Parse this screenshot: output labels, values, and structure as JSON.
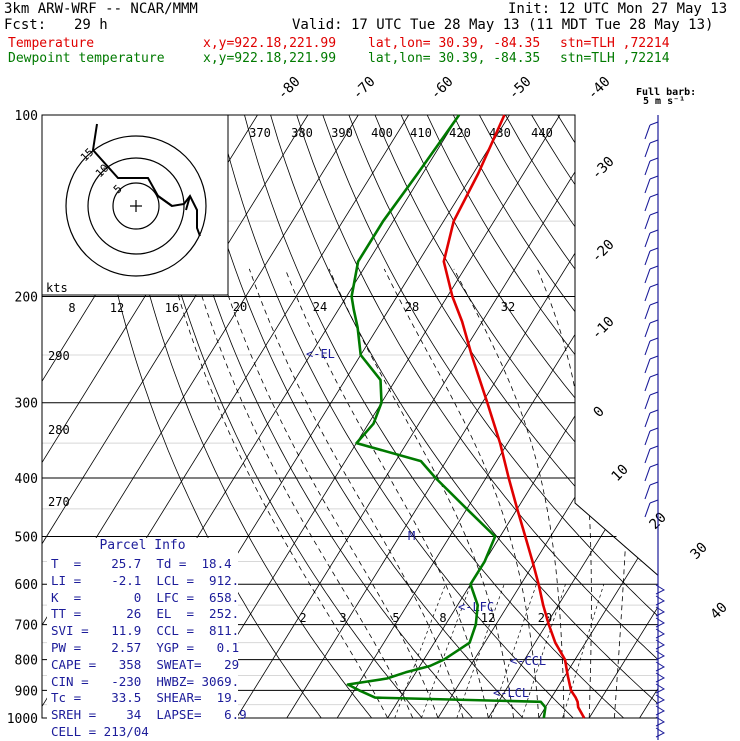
{
  "header": {
    "model": "3km ARW-WRF -- NCAR/MMM",
    "init": "Init: 12 UTC Mon 27 May 13",
    "fcst_label": "Fcst:",
    "fcst_value": "29 h",
    "valid": "Valid: 17 UTC Tue 28 May 13 (11 MDT Tue 28 May 13)",
    "lines": [
      {
        "label": "Temperature",
        "xy": "x,y=922.18,221.99",
        "latlon": "lat,lon= 30.39, -84.35",
        "stn": "stn=TLH ,72214",
        "color": "#e00000"
      },
      {
        "label": "Dewpoint temperature",
        "xy": "x,y=922.18,221.99",
        "latlon": "lat,lon= 30.39, -84.35",
        "stn": "stn=TLH ,72214",
        "color": "#007a00"
      }
    ]
  },
  "legend": {
    "full_barb": "Full barb:",
    "full_barb_value": "5 m s⁻¹"
  },
  "parcel_info": {
    "title": "Parcel Info",
    "rows": [
      "T  =    25.7  Td =  18.4",
      "LI =    -2.1  LCL =  912.",
      "K  =       0  LFC =  658.",
      "TT =      26  EL  =  252.",
      "SVI =   11.9  CCL =  811.",
      "PW =    2.57  YGP =   0.1",
      "CAPE =   358  SWEAT=   29",
      "CIN =   -230  HWBZ= 3069.",
      "Tc =    33.5  SHEAR=  19.",
      "SREH =    34  LAPSE=   6.9",
      "CELL = 213/04"
    ]
  },
  "chart_data": {
    "type": "skew-t",
    "pressure_levels": [
      100,
      200,
      300,
      400,
      500,
      600,
      700,
      800,
      900,
      1000
    ],
    "skewed_temperature_labels": [
      -80,
      -70,
      -60,
      -50,
      -40,
      -30,
      -20,
      -10,
      0,
      10,
      20,
      30,
      40
    ],
    "theta_labels": [
      370,
      380,
      390,
      400,
      410,
      420,
      430,
      440
    ],
    "theta_low_labels": [
      290,
      280,
      270
    ],
    "mixing_ratio_top_labels": [
      20,
      24,
      28,
      32
    ],
    "mixing_ratio_bottom_labels": [
      2,
      3,
      5,
      8,
      12,
      20
    ],
    "hodograph": {
      "units": "kts",
      "ring_labels": [
        5,
        10,
        15
      ],
      "speed_labels": [
        8,
        12,
        16
      ]
    },
    "markers": [
      {
        "label": "<-EL",
        "p": 252
      },
      {
        "label": "<-LFC",
        "p": 658
      },
      {
        "label": "<-CCL",
        "p": 811
      },
      {
        "label": "<-LCL",
        "p": 912
      },
      {
        "label": "M",
        "p": 500
      }
    ],
    "series": [
      {
        "name": "Temperature",
        "color": "#e00000",
        "points": [
          [
            1000,
            29
          ],
          [
            960,
            26.5
          ],
          [
            940,
            25.7
          ],
          [
            925,
            24.8
          ],
          [
            900,
            23
          ],
          [
            850,
            20.5
          ],
          [
            800,
            18
          ],
          [
            750,
            14
          ],
          [
            700,
            10.5
          ],
          [
            650,
            7
          ],
          [
            600,
            3.5
          ],
          [
            550,
            -0.5
          ],
          [
            500,
            -5
          ],
          [
            450,
            -10
          ],
          [
            400,
            -15.5
          ],
          [
            350,
            -21.5
          ],
          [
            300,
            -29
          ],
          [
            250,
            -38
          ],
          [
            220,
            -44
          ],
          [
            200,
            -49
          ],
          [
            175,
            -55
          ],
          [
            150,
            -58
          ],
          [
            125,
            -59
          ],
          [
            100,
            -61
          ]
        ]
      },
      {
        "name": "Dewpoint temperature",
        "color": "#007a00",
        "points": [
          [
            1000,
            21
          ],
          [
            960,
            20
          ],
          [
            940,
            18.4
          ],
          [
            925,
            -15
          ],
          [
            900,
            -19
          ],
          [
            880,
            -22
          ],
          [
            860,
            -15
          ],
          [
            840,
            -12
          ],
          [
            820,
            -8
          ],
          [
            800,
            -6
          ],
          [
            750,
            -3
          ],
          [
            700,
            -4
          ],
          [
            650,
            -6
          ],
          [
            600,
            -10
          ],
          [
            550,
            -10
          ],
          [
            500,
            -11
          ],
          [
            450,
            -20
          ],
          [
            400,
            -30
          ],
          [
            375,
            -35
          ],
          [
            350,
            -50
          ],
          [
            325,
            -49
          ],
          [
            300,
            -50
          ],
          [
            275,
            -53
          ],
          [
            250,
            -60
          ],
          [
            225,
            -64
          ],
          [
            210,
            -67
          ],
          [
            200,
            -69
          ],
          [
            175,
            -72
          ],
          [
            150,
            -72
          ],
          [
            125,
            -71
          ],
          [
            100,
            -70
          ]
        ]
      }
    ]
  }
}
